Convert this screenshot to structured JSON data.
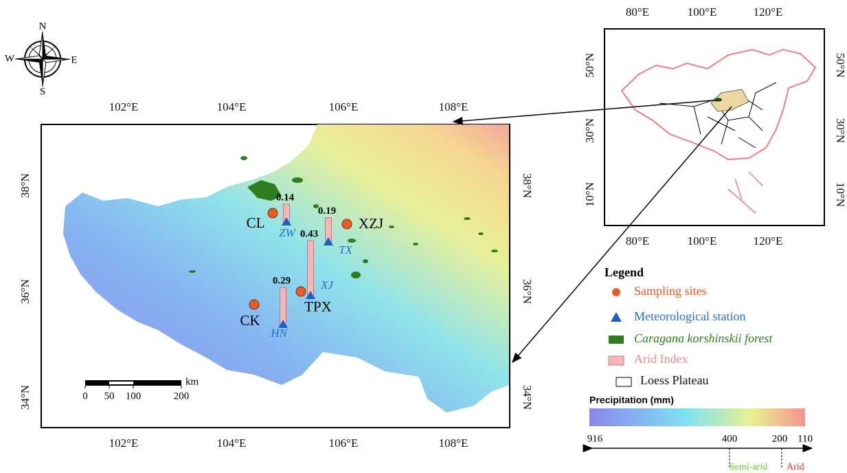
{
  "compass": {
    "north": "N",
    "south": "S",
    "east": "E",
    "west": "W"
  },
  "main_map": {
    "x_labels": [
      "102°E",
      "104°E",
      "106°E",
      "108°E"
    ],
    "y_labels": [
      "38°N",
      "36°N",
      "34°N"
    ],
    "sites": [
      {
        "label": "CL"
      },
      {
        "label": "XZJ"
      },
      {
        "label": "CK"
      },
      {
        "label": "TPX"
      }
    ],
    "stations": [
      {
        "label": "ZW",
        "arid_index": 0.14
      },
      {
        "label": "TX",
        "arid_index": 0.19
      },
      {
        "label": "XJ",
        "arid_index": 0.43
      },
      {
        "label": "HN",
        "arid_index": 0.29
      }
    ],
    "scale_bar": {
      "unit": "km",
      "ticks": [
        0,
        50,
        100,
        200
      ]
    }
  },
  "inset_map": {
    "x_labels": [
      "80°E",
      "100°E",
      "120°E"
    ],
    "y_labels": [
      "50°N",
      "30°N",
      "10°N"
    ]
  },
  "legend": {
    "title": "Legend",
    "items": [
      "Sampling sites",
      "Meteorological station",
      "Caragana korshinskii forest",
      "Arid Index",
      "Loess Plateau"
    ]
  },
  "precipitation": {
    "title": "Precipitation (mm)",
    "ticks": [
      916,
      400,
      200,
      110
    ],
    "zones": [
      "Semi-arid",
      "Arid"
    ]
  }
}
